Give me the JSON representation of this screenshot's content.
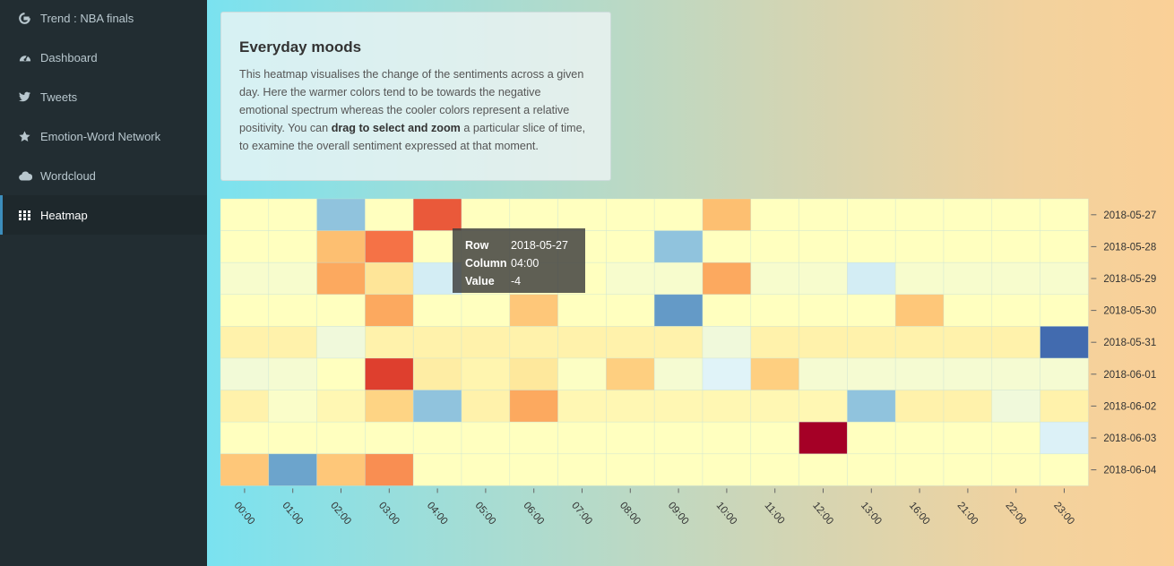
{
  "sidebar": {
    "brand": "Trend : NBA finals",
    "items": [
      {
        "label": "Dashboard",
        "icon": "dashboard-icon"
      },
      {
        "label": "Tweets",
        "icon": "twitter-icon"
      },
      {
        "label": "Emotion-Word Network",
        "icon": "star-icon"
      },
      {
        "label": "Wordcloud",
        "icon": "cloud-icon"
      },
      {
        "label": "Heatmap",
        "icon": "grid-icon",
        "active": true
      }
    ]
  },
  "info": {
    "title": "Everyday moods",
    "text_1": "This heatmap visualises the change of the sentiments across a given day. Here the warmer colors tend to be towards the negative emotional spectrum whereas the cooler colors represent a relative positivity. You can ",
    "text_bold": "drag to select and zoom",
    "text_2": " a particular slice of time, to examine the overall sentiment expressed at that moment."
  },
  "tooltip": {
    "row_label": "Row",
    "row_value": "2018-05-27",
    "column_label": "Column",
    "column_value": "04:00",
    "value_label": "Value",
    "value_value": "-4"
  },
  "chart_data": {
    "type": "heatmap",
    "title": "",
    "color_scale": "red-yellow-blue (warm = negative, cool = positive)",
    "columns": [
      "00:00",
      "01:00",
      "02:00",
      "03:00",
      "04:00",
      "05:00",
      "06:00",
      "07:00",
      "08:00",
      "09:00",
      "10:00",
      "11:00",
      "12:00",
      "13:00",
      "16:00",
      "21:00",
      "22:00",
      "23:00"
    ],
    "rows": [
      "2018-05-27",
      "2018-05-28",
      "2018-05-29",
      "2018-05-30",
      "2018-05-31",
      "2018-06-01",
      "2018-06-02",
      "2018-06-03",
      "2018-06-04"
    ],
    "values": [
      [
        0,
        0,
        3,
        0,
        -4,
        0,
        0,
        0,
        0,
        0,
        -2,
        0,
        0,
        0,
        0,
        0,
        0,
        0
      ],
      [
        0,
        0,
        -2,
        -3.5,
        0,
        0,
        0,
        0,
        0,
        3,
        0,
        0,
        0,
        0,
        0,
        0,
        0,
        0
      ],
      [
        0.3,
        0.3,
        -2.5,
        -1,
        1.5,
        0,
        0,
        0,
        0.3,
        0.3,
        -2.5,
        0.3,
        0.3,
        1.5,
        0.3,
        0.3,
        0.3,
        0.3
      ],
      [
        0,
        0,
        0,
        -2.5,
        0,
        0,
        -1.8,
        0,
        0,
        4,
        0,
        0,
        0,
        0,
        -1.8,
        0,
        0,
        0
      ],
      [
        -0.5,
        -0.5,
        0.6,
        -0.5,
        -0.5,
        -0.5,
        -0.5,
        -0.5,
        -0.5,
        -0.5,
        0.6,
        -0.5,
        -0.5,
        -0.5,
        -0.5,
        -0.5,
        -0.5,
        5
      ],
      [
        0.5,
        0.4,
        0,
        -4.5,
        -0.7,
        -0.4,
        -0.9,
        0.1,
        -1.6,
        0.4,
        1.2,
        -1.6,
        0.4,
        0.4,
        0.4,
        0.4,
        0.4,
        0.4
      ],
      [
        -0.5,
        0.2,
        -0.3,
        -1.5,
        3,
        -0.5,
        -2.5,
        -0.3,
        -0.3,
        -0.3,
        -0.3,
        -0.3,
        -0.3,
        3,
        -0.5,
        -0.5,
        0.6,
        -0.5
      ],
      [
        0,
        0,
        0,
        0,
        0,
        0,
        0,
        0,
        0,
        0,
        0,
        0,
        -6,
        0,
        0,
        0,
        0,
        1.3
      ],
      [
        -1.8,
        3.8,
        -1.8,
        -3,
        0,
        0,
        0,
        0,
        0,
        0,
        0,
        0,
        0,
        0,
        0,
        0,
        0,
        0
      ]
    ],
    "vmin": -6,
    "vmax": 6,
    "grid": false,
    "legend": "none"
  },
  "colors": {
    "sidebar_bg": "#222d32",
    "sidebar_active_bg": "#1e282c",
    "sidebar_text": "#b8c7ce"
  }
}
